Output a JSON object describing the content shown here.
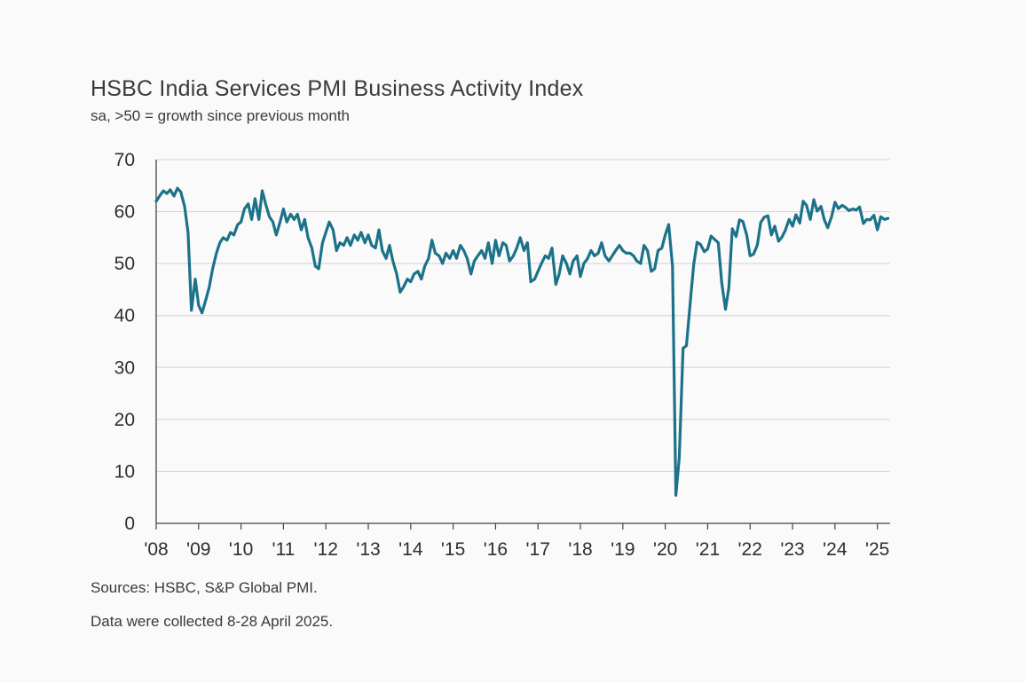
{
  "title": "HSBC India Services PMI Business Activity Index",
  "subtitle": "sa, >50 = growth since previous month",
  "notes": {
    "sources": "Sources: HSBC, S&P Global PMI.",
    "collected": "Data were collected 8-28 April 2025."
  },
  "colors": {
    "line": "#1b7289",
    "grid": "#d9d9d9",
    "axis": "#444444"
  },
  "chart_data": {
    "type": "line",
    "ylim": [
      0,
      70
    ],
    "yticks": [
      0,
      10,
      20,
      30,
      40,
      50,
      60,
      70
    ],
    "xlim": [
      2008.0,
      2025.3
    ],
    "xticks": [
      {
        "value": 2008,
        "label": "'08"
      },
      {
        "value": 2009,
        "label": "'09"
      },
      {
        "value": 2010,
        "label": "'10"
      },
      {
        "value": 2011,
        "label": "'11"
      },
      {
        "value": 2012,
        "label": "'12"
      },
      {
        "value": 2013,
        "label": "'13"
      },
      {
        "value": 2014,
        "label": "'14"
      },
      {
        "value": 2015,
        "label": "'15"
      },
      {
        "value": 2016,
        "label": "'16"
      },
      {
        "value": 2017,
        "label": "'17"
      },
      {
        "value": 2018,
        "label": "'18"
      },
      {
        "value": 2019,
        "label": "'19"
      },
      {
        "value": 2020,
        "label": "'20"
      },
      {
        "value": 2021,
        "label": "'21"
      },
      {
        "value": 2022,
        "label": "'22"
      },
      {
        "value": 2023,
        "label": "'23"
      },
      {
        "value": 2024,
        "label": "'24"
      },
      {
        "value": 2025,
        "label": "'25"
      }
    ],
    "grid": "horizontal",
    "xlabel": "",
    "ylabel": "",
    "series": [
      {
        "points": [
          [
            2008.0,
            62.0
          ],
          [
            2008.08,
            63.0
          ],
          [
            2008.17,
            64.0
          ],
          [
            2008.25,
            63.5
          ],
          [
            2008.33,
            64.2
          ],
          [
            2008.42,
            63.0
          ],
          [
            2008.5,
            64.5
          ],
          [
            2008.58,
            63.8
          ],
          [
            2008.67,
            61.0
          ],
          [
            2008.75,
            56.0
          ],
          [
            2008.83,
            41.0
          ],
          [
            2008.92,
            47.0
          ],
          [
            2009.0,
            42.0
          ],
          [
            2009.08,
            40.5
          ],
          [
            2009.17,
            43.0
          ],
          [
            2009.25,
            45.5
          ],
          [
            2009.33,
            49.0
          ],
          [
            2009.42,
            52.0
          ],
          [
            2009.5,
            54.0
          ],
          [
            2009.58,
            55.0
          ],
          [
            2009.67,
            54.5
          ],
          [
            2009.75,
            56.0
          ],
          [
            2009.83,
            55.5
          ],
          [
            2009.92,
            57.5
          ],
          [
            2010.0,
            58.0
          ],
          [
            2010.08,
            60.5
          ],
          [
            2010.17,
            61.5
          ],
          [
            2010.25,
            58.5
          ],
          [
            2010.33,
            62.5
          ],
          [
            2010.42,
            58.5
          ],
          [
            2010.5,
            64.0
          ],
          [
            2010.58,
            61.5
          ],
          [
            2010.67,
            59.0
          ],
          [
            2010.75,
            58.0
          ],
          [
            2010.83,
            55.5
          ],
          [
            2010.92,
            58.0
          ],
          [
            2011.0,
            60.5
          ],
          [
            2011.08,
            58.0
          ],
          [
            2011.17,
            59.5
          ],
          [
            2011.25,
            58.5
          ],
          [
            2011.33,
            59.5
          ],
          [
            2011.42,
            56.5
          ],
          [
            2011.5,
            58.5
          ],
          [
            2011.58,
            55.0
          ],
          [
            2011.67,
            53.0
          ],
          [
            2011.75,
            49.5
          ],
          [
            2011.83,
            49.0
          ],
          [
            2011.92,
            54.0
          ],
          [
            2012.0,
            56.0
          ],
          [
            2012.08,
            58.0
          ],
          [
            2012.17,
            56.5
          ],
          [
            2012.25,
            52.5
          ],
          [
            2012.33,
            54.0
          ],
          [
            2012.42,
            53.5
          ],
          [
            2012.5,
            55.0
          ],
          [
            2012.58,
            53.5
          ],
          [
            2012.67,
            55.5
          ],
          [
            2012.75,
            54.5
          ],
          [
            2012.83,
            56.0
          ],
          [
            2012.92,
            54.0
          ],
          [
            2013.0,
            55.5
          ],
          [
            2013.08,
            53.5
          ],
          [
            2013.17,
            53.0
          ],
          [
            2013.25,
            56.5
          ],
          [
            2013.33,
            52.5
          ],
          [
            2013.42,
            51.0
          ],
          [
            2013.5,
            53.5
          ],
          [
            2013.58,
            50.5
          ],
          [
            2013.67,
            48.0
          ],
          [
            2013.75,
            44.5
          ],
          [
            2013.83,
            45.5
          ],
          [
            2013.92,
            47.0
          ],
          [
            2014.0,
            46.5
          ],
          [
            2014.08,
            48.0
          ],
          [
            2014.17,
            48.5
          ],
          [
            2014.25,
            47.0
          ],
          [
            2014.33,
            49.5
          ],
          [
            2014.42,
            51.0
          ],
          [
            2014.5,
            54.5
          ],
          [
            2014.58,
            52.0
          ],
          [
            2014.67,
            51.5
          ],
          [
            2014.75,
            50.0
          ],
          [
            2014.83,
            52.0
          ],
          [
            2014.92,
            51.0
          ],
          [
            2015.0,
            52.5
          ],
          [
            2015.08,
            51.0
          ],
          [
            2015.17,
            53.5
          ],
          [
            2015.25,
            52.5
          ],
          [
            2015.33,
            51.0
          ],
          [
            2015.42,
            48.0
          ],
          [
            2015.5,
            50.5
          ],
          [
            2015.58,
            51.5
          ],
          [
            2015.67,
            52.5
          ],
          [
            2015.75,
            51.0
          ],
          [
            2015.83,
            54.0
          ],
          [
            2015.92,
            50.0
          ],
          [
            2016.0,
            54.5
          ],
          [
            2016.08,
            51.5
          ],
          [
            2016.17,
            54.0
          ],
          [
            2016.25,
            53.5
          ],
          [
            2016.33,
            50.5
          ],
          [
            2016.42,
            51.5
          ],
          [
            2016.5,
            53.0
          ],
          [
            2016.58,
            55.0
          ],
          [
            2016.67,
            52.5
          ],
          [
            2016.75,
            54.0
          ],
          [
            2016.83,
            46.5
          ],
          [
            2016.92,
            47.0
          ],
          [
            2017.0,
            48.5
          ],
          [
            2017.08,
            50.0
          ],
          [
            2017.17,
            51.5
          ],
          [
            2017.25,
            51.0
          ],
          [
            2017.33,
            53.0
          ],
          [
            2017.42,
            46.0
          ],
          [
            2017.5,
            48.0
          ],
          [
            2017.58,
            51.5
          ],
          [
            2017.67,
            50.0
          ],
          [
            2017.75,
            48.0
          ],
          [
            2017.83,
            50.5
          ],
          [
            2017.92,
            51.5
          ],
          [
            2018.0,
            47.5
          ],
          [
            2018.08,
            50.0
          ],
          [
            2018.17,
            51.0
          ],
          [
            2018.25,
            52.5
          ],
          [
            2018.33,
            51.5
          ],
          [
            2018.42,
            52.0
          ],
          [
            2018.5,
            54.0
          ],
          [
            2018.58,
            51.5
          ],
          [
            2018.67,
            50.5
          ],
          [
            2018.75,
            51.5
          ],
          [
            2018.83,
            52.5
          ],
          [
            2018.92,
            53.5
          ],
          [
            2019.0,
            52.5
          ],
          [
            2019.08,
            52.0
          ],
          [
            2019.17,
            52.0
          ],
          [
            2019.25,
            51.5
          ],
          [
            2019.33,
            50.5
          ],
          [
            2019.42,
            50.0
          ],
          [
            2019.5,
            53.5
          ],
          [
            2019.58,
            52.5
          ],
          [
            2019.67,
            48.5
          ],
          [
            2019.75,
            49.0
          ],
          [
            2019.83,
            52.5
          ],
          [
            2019.92,
            53.0
          ],
          [
            2020.0,
            55.5
          ],
          [
            2020.08,
            57.5
          ],
          [
            2020.17,
            49.5
          ],
          [
            2020.25,
            5.4
          ],
          [
            2020.33,
            12.6
          ],
          [
            2020.42,
            33.7
          ],
          [
            2020.5,
            34.2
          ],
          [
            2020.58,
            41.8
          ],
          [
            2020.67,
            49.8
          ],
          [
            2020.75,
            54.1
          ],
          [
            2020.83,
            53.7
          ],
          [
            2020.92,
            52.3
          ],
          [
            2021.0,
            52.8
          ],
          [
            2021.08,
            55.3
          ],
          [
            2021.17,
            54.6
          ],
          [
            2021.25,
            54.0
          ],
          [
            2021.33,
            46.4
          ],
          [
            2021.42,
            41.2
          ],
          [
            2021.5,
            45.4
          ],
          [
            2021.58,
            56.7
          ],
          [
            2021.67,
            55.2
          ],
          [
            2021.75,
            58.4
          ],
          [
            2021.83,
            58.1
          ],
          [
            2021.92,
            55.5
          ],
          [
            2022.0,
            51.5
          ],
          [
            2022.08,
            51.8
          ],
          [
            2022.17,
            53.6
          ],
          [
            2022.25,
            57.9
          ],
          [
            2022.33,
            58.9
          ],
          [
            2022.42,
            59.2
          ],
          [
            2022.5,
            55.5
          ],
          [
            2022.58,
            57.2
          ],
          [
            2022.67,
            54.3
          ],
          [
            2022.75,
            55.1
          ],
          [
            2022.83,
            56.4
          ],
          [
            2022.92,
            58.5
          ],
          [
            2023.0,
            57.2
          ],
          [
            2023.08,
            59.4
          ],
          [
            2023.17,
            57.8
          ],
          [
            2023.25,
            62.0
          ],
          [
            2023.33,
            61.2
          ],
          [
            2023.42,
            58.5
          ],
          [
            2023.5,
            62.3
          ],
          [
            2023.58,
            60.1
          ],
          [
            2023.67,
            61.0
          ],
          [
            2023.75,
            58.4
          ],
          [
            2023.83,
            56.9
          ],
          [
            2023.92,
            59.0
          ],
          [
            2024.0,
            61.8
          ],
          [
            2024.08,
            60.6
          ],
          [
            2024.17,
            61.2
          ],
          [
            2024.25,
            60.8
          ],
          [
            2024.33,
            60.2
          ],
          [
            2024.42,
            60.5
          ],
          [
            2024.5,
            60.3
          ],
          [
            2024.58,
            60.9
          ],
          [
            2024.67,
            57.7
          ],
          [
            2024.75,
            58.5
          ],
          [
            2024.83,
            58.4
          ],
          [
            2024.92,
            59.3
          ],
          [
            2025.0,
            56.5
          ],
          [
            2025.08,
            59.0
          ],
          [
            2025.17,
            58.5
          ],
          [
            2025.25,
            58.7
          ]
        ]
      }
    ]
  }
}
